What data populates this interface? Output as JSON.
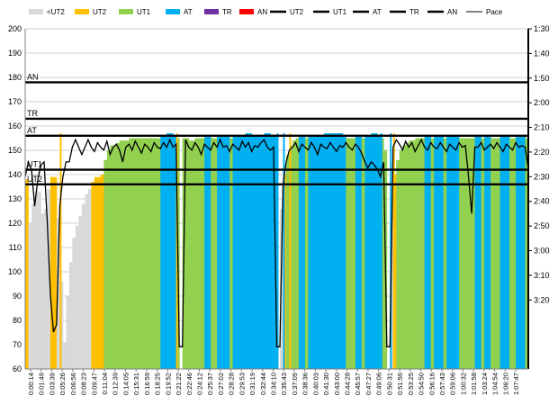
{
  "chart_data": {
    "type": "area",
    "legend": {
      "placement": "top",
      "entries": [
        {
          "label": "<UT2",
          "kind": "swatch",
          "color": "#d9d9d9"
        },
        {
          "label": "UT2",
          "kind": "swatch",
          "color": "#ffc000"
        },
        {
          "label": "UT1",
          "kind": "swatch",
          "color": "#92d050"
        },
        {
          "label": "AT",
          "kind": "swatch",
          "color": "#00b0f0"
        },
        {
          "label": "TR",
          "kind": "swatch",
          "color": "#7030a0"
        },
        {
          "label": "AN",
          "kind": "swatch",
          "color": "#ff0000"
        },
        {
          "label": "UT2",
          "kind": "line",
          "color": "#000000"
        },
        {
          "label": "UT1",
          "kind": "line",
          "color": "#000000"
        },
        {
          "label": "AT",
          "kind": "line",
          "color": "#000000"
        },
        {
          "label": "TR",
          "kind": "line",
          "color": "#000000"
        },
        {
          "label": "AN",
          "kind": "line",
          "color": "#000000"
        },
        {
          "label": "Pace",
          "kind": "thinline",
          "color": "#000000"
        }
      ]
    },
    "y_left": {
      "min": 60,
      "max": 200,
      "ticks": [
        "200",
        "190",
        "180",
        "170",
        "160",
        "150",
        "140",
        "130",
        "120",
        "110",
        "100",
        "90",
        "80",
        "70",
        "60"
      ]
    },
    "y_right": {
      "ticks": [
        "1:30",
        "1:40",
        "1:50",
        "2:00",
        "2:10",
        "2:20",
        "2:30",
        "2:40",
        "2:50",
        "3:00",
        "3:10",
        "3:20"
      ]
    },
    "x_ticks": [
      "0:00:14",
      "0:01:49",
      "0:03:39",
      "0:05:26",
      "0:06:56",
      "0:08:23",
      "0:09:47",
      "0:11:04",
      "0:12:39",
      "0:14:05",
      "0:15:31",
      "0:16:59",
      "0:18:25",
      "0:19:52",
      "0:21:22",
      "0:22:46",
      "0:24:12",
      "0:25:37",
      "0:27:02",
      "0:28:28",
      "0:29:53",
      "0:31:19",
      "0:32:44",
      "0:34:10",
      "0:35:43",
      "0:37:09",
      "0:38:36",
      "0:40:03",
      "0:41:30",
      "0:43:00",
      "0:44:28",
      "0:45:57",
      "0:47:27",
      "0:49:06",
      "0:50:31",
      "0:51:59",
      "0:53:25",
      "0:54:50",
      "0:56:16",
      "0:57:43",
      "0:59:06",
      "1:00:32",
      "1:01:58",
      "1:03:24",
      "1:04:54",
      "1:06:20",
      "1:07:47"
    ],
    "zones": [
      {
        "label": "UT2",
        "value": 136
      },
      {
        "label": "UT1",
        "value": 142
      },
      {
        "label": "AT",
        "value": 156
      },
      {
        "label": "TR",
        "value": 163
      },
      {
        "label": "AN",
        "value": 178
      }
    ],
    "heart_rate": [
      [
        0,
        138
      ],
      [
        1,
        120
      ],
      [
        2,
        112
      ],
      [
        3,
        128
      ],
      [
        4,
        133
      ],
      [
        5,
        124
      ],
      [
        6,
        109
      ],
      [
        7,
        126
      ],
      [
        8,
        134
      ],
      [
        9,
        139
      ],
      [
        10,
        122
      ],
      [
        11,
        96
      ],
      [
        12,
        64
      ],
      [
        13,
        71
      ],
      [
        14,
        90
      ],
      [
        15,
        104
      ],
      [
        16,
        114
      ],
      [
        17,
        119
      ],
      [
        18,
        123
      ],
      [
        19,
        128
      ],
      [
        20,
        132
      ],
      [
        21,
        134
      ],
      [
        22,
        137
      ],
      [
        23,
        139
      ],
      [
        24,
        138
      ],
      [
        25,
        140
      ],
      [
        26,
        146
      ],
      [
        27,
        150
      ],
      [
        28,
        152
      ],
      [
        29,
        152
      ],
      [
        30,
        153
      ],
      [
        31,
        154
      ],
      [
        32,
        153
      ],
      [
        33,
        154
      ],
      [
        34,
        155
      ],
      [
        35,
        155
      ],
      [
        36,
        154
      ],
      [
        37,
        155
      ],
      [
        38,
        154
      ],
      [
        39,
        155
      ],
      [
        40,
        155
      ],
      [
        41,
        155
      ],
      [
        42,
        155
      ],
      [
        43,
        155
      ],
      [
        44,
        156
      ],
      [
        45,
        154
      ],
      [
        46,
        157
      ],
      [
        47,
        156
      ],
      [
        48,
        155
      ],
      [
        49,
        60
      ],
      [
        50,
        60
      ],
      [
        51,
        155
      ],
      [
        52,
        153
      ],
      [
        53,
        154
      ],
      [
        54,
        154
      ],
      [
        55,
        155
      ],
      [
        56,
        155
      ],
      [
        57,
        155
      ],
      [
        58,
        156
      ],
      [
        59,
        155
      ],
      [
        60,
        155
      ],
      [
        61,
        154
      ],
      [
        62,
        156
      ],
      [
        63,
        155
      ],
      [
        64,
        156
      ],
      [
        65,
        155
      ],
      [
        66,
        155
      ],
      [
        67,
        156
      ],
      [
        68,
        155
      ],
      [
        69,
        156
      ],
      [
        70,
        156
      ],
      [
        71,
        157
      ],
      [
        72,
        156
      ],
      [
        73,
        155
      ],
      [
        74,
        156
      ],
      [
        75,
        156
      ],
      [
        76,
        156
      ],
      [
        77,
        157
      ],
      [
        78,
        156
      ],
      [
        79,
        156
      ],
      [
        80,
        60
      ],
      [
        81,
        60
      ],
      [
        82,
        126
      ],
      [
        83,
        140
      ],
      [
        84,
        148
      ],
      [
        85,
        152
      ],
      [
        86,
        154
      ],
      [
        87,
        155
      ],
      [
        88,
        156
      ],
      [
        89,
        155
      ],
      [
        90,
        155
      ],
      [
        91,
        156
      ],
      [
        92,
        156
      ],
      [
        93,
        155
      ],
      [
        94,
        156
      ],
      [
        95,
        156
      ],
      [
        96,
        157
      ],
      [
        97,
        156
      ],
      [
        98,
        157
      ],
      [
        99,
        156
      ],
      [
        100,
        157
      ],
      [
        101,
        156
      ],
      [
        102,
        155
      ],
      [
        103,
        155
      ],
      [
        104,
        154
      ],
      [
        105,
        155
      ],
      [
        106,
        156
      ],
      [
        107,
        155
      ],
      [
        108,
        155
      ],
      [
        109,
        156
      ],
      [
        110,
        155
      ],
      [
        111,
        157
      ],
      [
        112,
        156
      ],
      [
        113,
        155
      ],
      [
        114,
        150
      ],
      [
        115,
        60
      ],
      [
        116,
        60
      ],
      [
        117,
        130
      ],
      [
        118,
        140
      ],
      [
        119,
        146
      ],
      [
        120,
        150
      ],
      [
        121,
        152
      ],
      [
        122,
        153
      ],
      [
        123,
        154
      ],
      [
        124,
        154
      ],
      [
        125,
        155
      ],
      [
        126,
        155
      ],
      [
        127,
        154
      ],
      [
        128,
        156
      ],
      [
        129,
        155
      ],
      [
        130,
        155
      ],
      [
        131,
        156
      ],
      [
        132,
        156
      ],
      [
        133,
        155
      ],
      [
        134,
        155
      ],
      [
        135,
        156
      ],
      [
        136,
        155
      ],
      [
        137,
        156
      ],
      [
        138,
        155
      ],
      [
        139,
        155
      ],
      [
        140,
        154
      ],
      [
        141,
        155
      ],
      [
        142,
        155
      ],
      [
        143,
        155
      ],
      [
        144,
        156
      ],
      [
        145,
        155
      ],
      [
        146,
        155
      ],
      [
        147,
        156
      ],
      [
        148,
        154
      ],
      [
        149,
        155
      ],
      [
        150,
        155
      ],
      [
        151,
        155
      ],
      [
        152,
        156
      ],
      [
        153,
        156
      ],
      [
        154,
        155
      ],
      [
        155,
        155
      ],
      [
        156,
        154
      ],
      [
        157,
        156
      ],
      [
        158,
        156
      ],
      [
        159,
        155
      ],
      [
        160,
        154
      ]
    ],
    "pace": [
      [
        0,
        2.5
      ],
      [
        1,
        2.4
      ],
      [
        2,
        2.45
      ],
      [
        3,
        2.7
      ],
      [
        4,
        2.52
      ],
      [
        5,
        2.42
      ],
      [
        6,
        2.4
      ],
      [
        7,
        2.8
      ],
      [
        8,
        3.3
      ],
      [
        9,
        3.55
      ],
      [
        10,
        3.5
      ],
      [
        11,
        2.7
      ],
      [
        12,
        2.5
      ],
      [
        13,
        2.4
      ],
      [
        14,
        2.4
      ],
      [
        15,
        2.3
      ],
      [
        16,
        2.25
      ],
      [
        17,
        2.3
      ],
      [
        18,
        2.35
      ],
      [
        19,
        2.3
      ],
      [
        20,
        2.25
      ],
      [
        21,
        2.3
      ],
      [
        22,
        2.33
      ],
      [
        23,
        2.27
      ],
      [
        24,
        2.3
      ],
      [
        25,
        2.32
      ],
      [
        26,
        2.26
      ],
      [
        27,
        2.35
      ],
      [
        28,
        2.3
      ],
      [
        29,
        2.28
      ],
      [
        30,
        2.32
      ],
      [
        31,
        2.4
      ],
      [
        32,
        2.3
      ],
      [
        33,
        2.28
      ],
      [
        34,
        2.32
      ],
      [
        35,
        2.26
      ],
      [
        36,
        2.3
      ],
      [
        37,
        2.34
      ],
      [
        38,
        2.28
      ],
      [
        39,
        2.3
      ],
      [
        40,
        2.33
      ],
      [
        41,
        2.27
      ],
      [
        42,
        2.3
      ],
      [
        43,
        2.31
      ],
      [
        44,
        2.27
      ],
      [
        45,
        2.3
      ],
      [
        46,
        2.25
      ],
      [
        47,
        2.3
      ],
      [
        48,
        2.28
      ],
      [
        49,
        3.65
      ],
      [
        50,
        3.65
      ],
      [
        51,
        2.25
      ],
      [
        52,
        2.3
      ],
      [
        53,
        2.32
      ],
      [
        54,
        2.27
      ],
      [
        55,
        2.3
      ],
      [
        56,
        2.35
      ],
      [
        57,
        2.28
      ],
      [
        58,
        2.3
      ],
      [
        59,
        2.32
      ],
      [
        60,
        2.27
      ],
      [
        61,
        2.3
      ],
      [
        62,
        2.25
      ],
      [
        63,
        2.3
      ],
      [
        64,
        2.29
      ],
      [
        65,
        2.33
      ],
      [
        66,
        2.28
      ],
      [
        67,
        2.3
      ],
      [
        68,
        2.32
      ],
      [
        69,
        2.26
      ],
      [
        70,
        2.3
      ],
      [
        71,
        2.27
      ],
      [
        72,
        2.33
      ],
      [
        73,
        2.29
      ],
      [
        74,
        2.3
      ],
      [
        75,
        2.27
      ],
      [
        76,
        2.25
      ],
      [
        77,
        2.3
      ],
      [
        78,
        2.32
      ],
      [
        79,
        2.3
      ],
      [
        80,
        3.65
      ],
      [
        81,
        3.65
      ],
      [
        82,
        2.55
      ],
      [
        83,
        2.4
      ],
      [
        84,
        2.32
      ],
      [
        85,
        2.3
      ],
      [
        86,
        2.27
      ],
      [
        87,
        2.33
      ],
      [
        88,
        2.28
      ],
      [
        89,
        2.3
      ],
      [
        90,
        2.32
      ],
      [
        91,
        2.27
      ],
      [
        92,
        2.3
      ],
      [
        93,
        2.35
      ],
      [
        94,
        2.28
      ],
      [
        95,
        2.3
      ],
      [
        96,
        2.31
      ],
      [
        97,
        2.27
      ],
      [
        98,
        2.3
      ],
      [
        99,
        2.33
      ],
      [
        100,
        2.29
      ],
      [
        101,
        2.3
      ],
      [
        102,
        2.27
      ],
      [
        103,
        2.3
      ],
      [
        104,
        2.32
      ],
      [
        105,
        2.28
      ],
      [
        106,
        2.3
      ],
      [
        107,
        2.34
      ],
      [
        108,
        2.4
      ],
      [
        109,
        2.44
      ],
      [
        110,
        2.4
      ],
      [
        111,
        2.42
      ],
      [
        112,
        2.45
      ],
      [
        113,
        2.5
      ],
      [
        114,
        2.4
      ],
      [
        115,
        3.65
      ],
      [
        116,
        3.65
      ],
      [
        117,
        2.3
      ],
      [
        118,
        2.25
      ],
      [
        119,
        2.28
      ],
      [
        120,
        2.32
      ],
      [
        121,
        2.26
      ],
      [
        122,
        2.3
      ],
      [
        123,
        2.27
      ],
      [
        124,
        2.33
      ],
      [
        125,
        2.29
      ],
      [
        126,
        2.25
      ],
      [
        127,
        2.3
      ],
      [
        128,
        2.32
      ],
      [
        129,
        2.27
      ],
      [
        130,
        2.3
      ],
      [
        131,
        2.31
      ],
      [
        132,
        2.27
      ],
      [
        133,
        2.3
      ],
      [
        134,
        2.33
      ],
      [
        135,
        2.28
      ],
      [
        136,
        2.3
      ],
      [
        137,
        2.32
      ],
      [
        138,
        2.27
      ],
      [
        139,
        2.3
      ],
      [
        140,
        2.29
      ],
      [
        141,
        2.5
      ],
      [
        142,
        2.75
      ],
      [
        143,
        2.3
      ],
      [
        144,
        2.3
      ],
      [
        145,
        2.27
      ],
      [
        146,
        2.32
      ],
      [
        147,
        2.3
      ],
      [
        148,
        2.28
      ],
      [
        149,
        2.31
      ],
      [
        150,
        2.27
      ],
      [
        151,
        2.3
      ],
      [
        152,
        2.33
      ],
      [
        153,
        2.28
      ],
      [
        154,
        2.3
      ],
      [
        155,
        2.32
      ],
      [
        156,
        2.27
      ],
      [
        157,
        2.3
      ],
      [
        158,
        2.29
      ],
      [
        159,
        2.3
      ],
      [
        160,
        2.45
      ]
    ]
  }
}
